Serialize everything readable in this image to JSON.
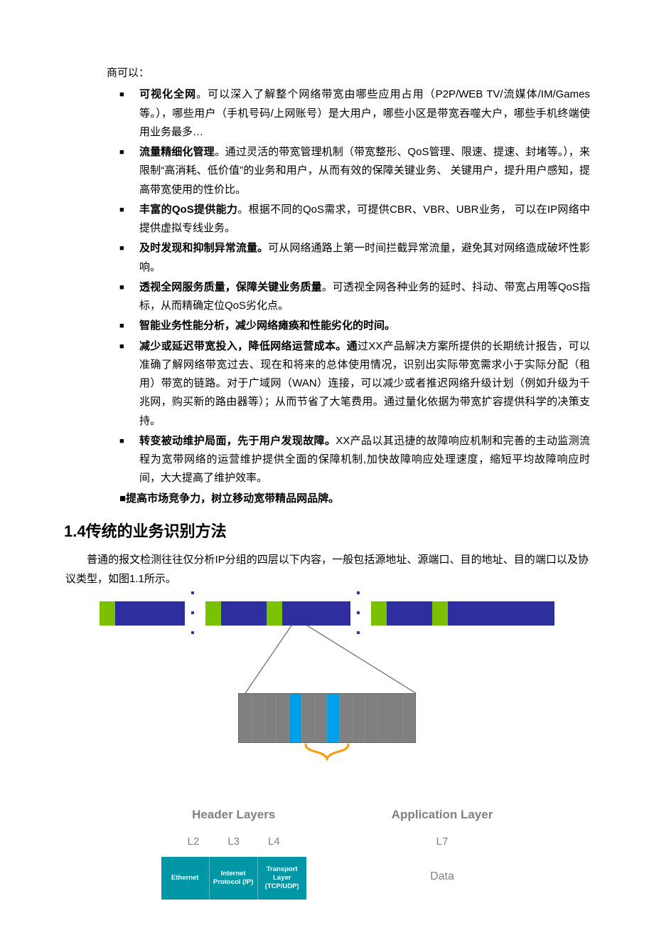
{
  "leadIn": "商可以：",
  "bullets": [
    {
      "bold": "可视化全网",
      "sep": "。",
      "rest": "可以深入了解整个网络带宽由哪些应用占用（P2P/WEB TV/流媒体/IM/Games等。），哪些用户（手机号码/上网账号）是大用户，哪些小区是带宽吞噬大户，哪些手机终端使用业务最多…"
    },
    {
      "bold": "流量精细化管理",
      "sep": "。",
      "rest": "通过灵活的带宽管理机制（带宽整形、QoS管理、限速、提速、封堵等。），来限制“高消耗、低价值”的业务和用户，从而有效的保障关键业务、 关键用户，提升用户感知，提高带宽使用的性价比。"
    },
    {
      "bold": "丰富的QoS提供能力",
      "sep": "。",
      "rest": "根据不同的QoS需求，可提供CBR、VBR、UBR业务， 可以在IP网络中提供虚拟专线业务。"
    },
    {
      "bold": "及时发现和抑制异常流量。",
      "sep": "",
      "rest": "可从网络通路上第一时间拦截异常流量，避免其对网络造成破坏性影响。"
    },
    {
      "bold": "透视全网服务质量，保障关键业务质量",
      "sep": "。",
      "rest": "可透视全网各种业务的延时、抖动、带宽占用等QoS指标，从而精确定位QoS劣化点。"
    },
    {
      "bold": "智能业务性能分析，减少网络瘫痪和性能劣化的时间。",
      "sep": "",
      "rest": ""
    },
    {
      "bold": "减少或延迟带宽投入，降低网络运营成本。通",
      "sep": "",
      "rest": "过XX产品解决方案所提供的长期统计报告，可以准确了解网络带宽过去、现在和将来的总体使用情况，识别出实际带宽需求小于实际分配（租用）带宽的链路。对于广域网（WAN）连接，可以减少或者推迟网络升级计划（例如升级为千兆网，购买新的路由器等）；从而节省了大笔费用。通过量化依据为带宽扩容提供科学的决策支持。"
    },
    {
      "bold": "转变被动维护局面，先于用户发现故障。",
      "sep": "",
      "rest": "XX产品以其迅捷的故障响应机制和完善的主动监测流程为宽带网络的运营维护提供全面的保障机制,加快故障响应处理速度，缩短平均故障响应时间，大大提高了维护效率。"
    }
  ],
  "tailBold": "提高市场竞争力，树立移动宽带精品网品牌。",
  "sectionTitle": "1.4传统的业务识别方法",
  "bodyPara": "普通的报文检测往往仅分析IP分组的四层以下内容，一般包括源地址、源端口、目的地址、目的端口以及协议类型，如图1.1所示。",
  "diagram": {
    "dots": "▪ ▪ ▪",
    "colors": {
      "packet_header": "#7ac100",
      "packet_body": "#2e2ea0",
      "stripe_gray": "#808080",
      "stripe_blue": "#00a0e9",
      "brace": "#ff9800",
      "layer_box_bg": "#0097a7",
      "muted_text": "#808080",
      "zoom_line": "#666666"
    },
    "packets": [
      {
        "body_w": 98
      },
      {
        "body_w": 64
      },
      {
        "body_w": 96
      },
      {
        "body_w": 64
      },
      {
        "body_w": 150
      }
    ],
    "detail_stripes": [
      "g",
      "g",
      "g",
      "g",
      "b",
      "g",
      "g",
      "b",
      "g",
      "g",
      "g",
      "g",
      "g",
      "g"
    ],
    "header_layers": {
      "title": "Header Layers",
      "subs": [
        "L2",
        "L3",
        "L4"
      ],
      "boxes": [
        "Ethernet",
        "Internet Protocol (IP)",
        "Transport Layer (TCP/UDP)"
      ]
    },
    "app_layer": {
      "title": "Application Layer",
      "sub": "L7",
      "data": "Data"
    }
  }
}
